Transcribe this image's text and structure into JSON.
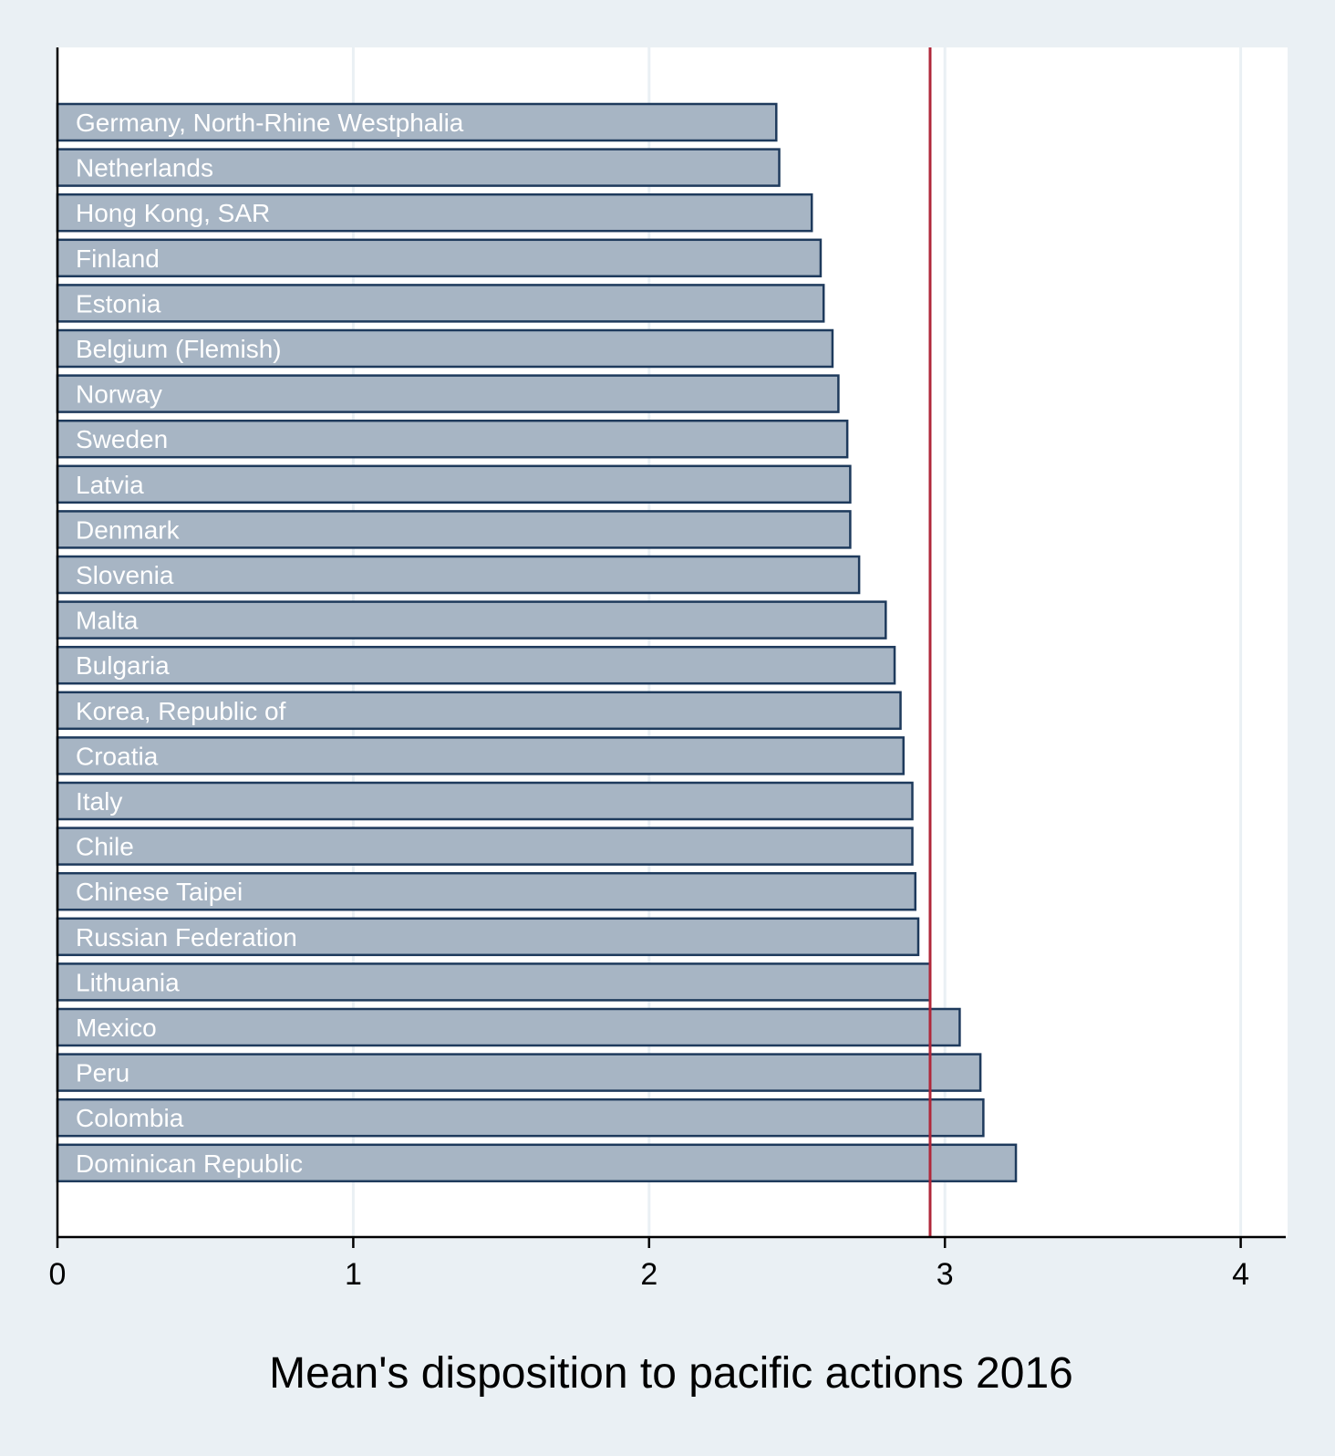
{
  "chart_data": {
    "type": "bar",
    "orientation": "horizontal",
    "xlabel": "Mean's disposition to pacific actions 2016",
    "xlim": [
      0,
      4.16
    ],
    "xticks": [
      0,
      1,
      2,
      3,
      4
    ],
    "grid": "vertical",
    "reference_line": {
      "value": 2.95,
      "color": "#b0283a"
    },
    "categories": [
      "Germany, North-Rhine Westphalia",
      "Netherlands",
      "Hong Kong, SAR",
      "Finland",
      "Estonia",
      "Belgium (Flemish)",
      "Norway",
      "Sweden",
      "Latvia",
      "Denmark",
      "Slovenia",
      "Malta",
      "Bulgaria",
      "Korea, Republic of",
      "Croatia",
      "Italy",
      "Chile",
      "Chinese Taipei",
      "Russian Federation",
      "Lithuania",
      "Mexico",
      "Peru",
      "Colombia",
      "Dominican Republic"
    ],
    "values": [
      2.43,
      2.44,
      2.55,
      2.58,
      2.59,
      2.62,
      2.64,
      2.67,
      2.68,
      2.68,
      2.71,
      2.8,
      2.83,
      2.85,
      2.86,
      2.89,
      2.89,
      2.9,
      2.91,
      2.95,
      3.05,
      3.12,
      3.13,
      3.24
    ],
    "colors": {
      "bar_fill": "#a7b5c4",
      "bar_stroke": "#1e3a5c",
      "plot_background": "#ffffff",
      "page_background": "#eaf0f4",
      "grid": "#eaf0f4",
      "axis": "#000000"
    }
  }
}
